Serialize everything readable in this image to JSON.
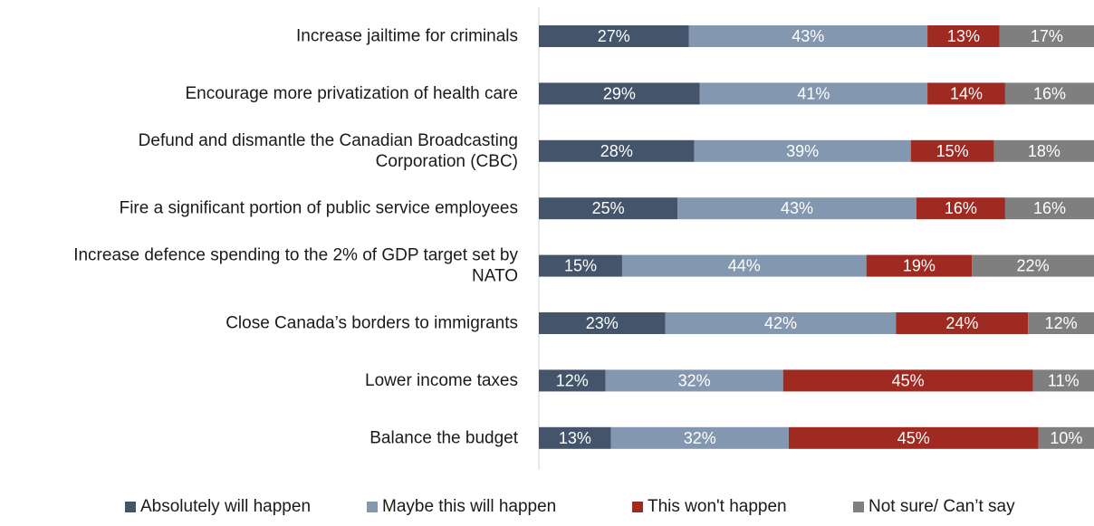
{
  "chart_data": {
    "type": "bar",
    "orientation": "horizontal",
    "stacked": true,
    "percent_stacked": true,
    "value_format": "percent",
    "title": "",
    "xlabel": "",
    "ylabel": "",
    "xlim": [
      0,
      100
    ],
    "grid": false,
    "legend_position": "bottom",
    "categories": [
      "Increase jailtime for criminals",
      "Encourage more privatization of health care",
      "Defund and dismantle the Canadian Broadcasting Corporation (CBC)",
      "Fire a significant portion of public service employees",
      "Increase defence spending to the 2% of GDP target set by NATO",
      "Close Canada’s borders to immigrants",
      "Lower income taxes",
      "Balance the budget"
    ],
    "category_lines": [
      [
        "Increase jailtime for criminals"
      ],
      [
        "Encourage more privatization of health care"
      ],
      [
        "Defund and dismantle the Canadian Broadcasting",
        "Corporation (CBC)"
      ],
      [
        "Fire a significant portion of public service employees"
      ],
      [
        "Increase defence spending to the 2% of GDP target set by",
        "NATO"
      ],
      [
        "Close Canada’s borders to immigrants"
      ],
      [
        "Lower income taxes"
      ],
      [
        "Balance the budget"
      ]
    ],
    "series": [
      {
        "name": "Absolutely will happen",
        "color": "#44546a",
        "values": [
          27,
          29,
          28,
          25,
          15,
          23,
          12,
          13
        ]
      },
      {
        "name": "Maybe this will happen",
        "color": "#8497b0",
        "values": [
          43,
          41,
          39,
          43,
          44,
          42,
          32,
          32
        ]
      },
      {
        "name": "This won't happen",
        "color": "#9e2a22",
        "values": [
          13,
          14,
          15,
          16,
          19,
          24,
          45,
          45
        ]
      },
      {
        "name": "Not sure/ Can’t say",
        "color": "#7f7f7f",
        "values": [
          17,
          16,
          18,
          16,
          22,
          12,
          11,
          10
        ]
      }
    ]
  }
}
